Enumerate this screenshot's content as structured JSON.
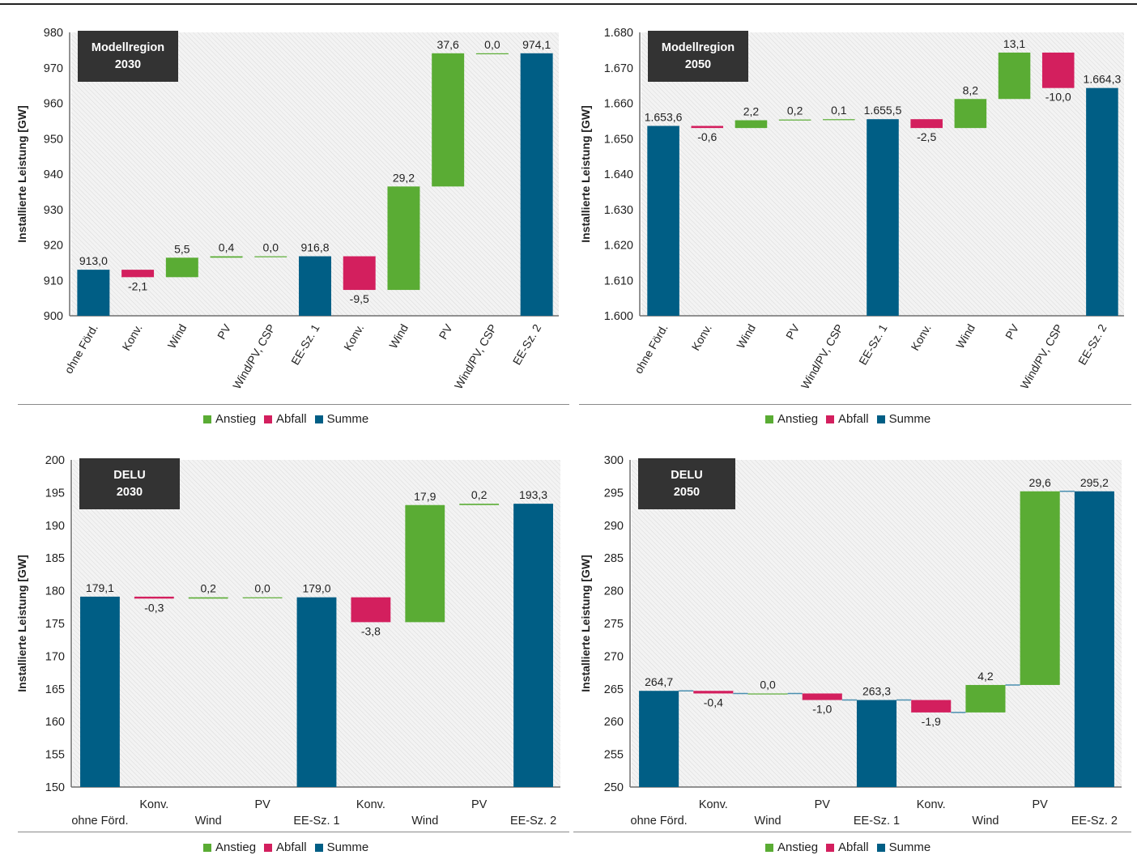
{
  "colors": {
    "increase": "#5aac34",
    "decrease": "#d31f5e",
    "total": "#005e85",
    "label_box": "#333333",
    "plot_bg": "#ececec",
    "axis": "#6f6f6f"
  },
  "legend": {
    "items": [
      {
        "key": "increase",
        "label": "Anstieg"
      },
      {
        "key": "decrease",
        "label": "Abfall"
      },
      {
        "key": "total",
        "label": "Summe"
      }
    ]
  },
  "chart_data": [
    {
      "type": "bar",
      "subtype": "waterfall",
      "title": "Modellregion 2030",
      "title_lines": [
        "Modellregion",
        "2030"
      ],
      "ylabel": "Installierte Leistung [GW]",
      "xlabel": "",
      "ylim": [
        900,
        980
      ],
      "yticks": [
        900,
        910,
        920,
        930,
        940,
        950,
        960,
        970,
        980
      ],
      "ytick_labels": [
        "900",
        "910",
        "920",
        "930",
        "940",
        "950",
        "960",
        "970",
        "980"
      ],
      "xlabel_style": "rotated",
      "grid": false,
      "legend": "bottom",
      "categories": [
        "ohne Förd.",
        "Konv.",
        "Wind",
        "PV",
        "Wind/PV, CSP",
        "EE-Sz. 1",
        "Konv.",
        "Wind",
        "PV",
        "Wind/PV, CSP",
        "EE-Sz. 2"
      ],
      "kinds": [
        "total",
        "decrease",
        "increase",
        "increase",
        "increase",
        "total",
        "decrease",
        "increase",
        "increase",
        "increase",
        "total"
      ],
      "values": [
        913.0,
        -2.1,
        5.5,
        0.4,
        0.0,
        916.8,
        -9.5,
        29.2,
        37.6,
        0.0,
        974.1
      ],
      "value_labels": [
        "913,0",
        "-2,1",
        "5,5",
        "0,4",
        "0,0",
        "916,8",
        "-9,5",
        "29,2",
        "37,6",
        "0,0",
        "974,1"
      ],
      "connectors": false
    },
    {
      "type": "bar",
      "subtype": "waterfall",
      "title": "Modellregion 2050",
      "title_lines": [
        "Modellregion",
        "2050"
      ],
      "ylabel": "Installierte Leistung [GW]",
      "xlabel": "",
      "ylim": [
        1600,
        1680
      ],
      "yticks": [
        1600,
        1610,
        1620,
        1630,
        1640,
        1650,
        1660,
        1670,
        1680
      ],
      "ytick_labels": [
        "1.600",
        "1.610",
        "1.620",
        "1.630",
        "1.640",
        "1.650",
        "1.660",
        "1.670",
        "1.680"
      ],
      "xlabel_style": "rotated",
      "grid": false,
      "legend": "bottom",
      "categories": [
        "ohne Förd.",
        "Konv.",
        "Wind",
        "PV",
        "Wind/PV, CSP",
        "EE-Sz. 1",
        "Konv.",
        "Wind",
        "PV",
        "Wind/PV, CSP",
        "EE-Sz. 2"
      ],
      "kinds": [
        "total",
        "decrease",
        "increase",
        "increase",
        "increase",
        "total",
        "decrease",
        "increase",
        "increase",
        "decrease",
        "total"
      ],
      "values": [
        1653.6,
        -0.6,
        2.2,
        0.2,
        0.1,
        1655.5,
        -2.5,
        8.2,
        13.1,
        -10.0,
        1664.3
      ],
      "value_labels": [
        "1.653,6",
        "-0,6",
        "2,2",
        "0,2",
        "0,1",
        "1.655,5",
        "-2,5",
        "8,2",
        "13,1",
        "-10,0",
        "1.664,3"
      ],
      "connectors": false
    },
    {
      "type": "bar",
      "subtype": "waterfall",
      "title": "DELU 2030",
      "title_lines": [
        "DELU",
        "2030"
      ],
      "ylabel": "Installierte Leistung [GW]",
      "xlabel": "",
      "ylim": [
        150,
        200
      ],
      "yticks": [
        150,
        155,
        160,
        165,
        170,
        175,
        180,
        185,
        190,
        195,
        200
      ],
      "ytick_labels": [
        "150",
        "155",
        "160",
        "165",
        "170",
        "175",
        "180",
        "185",
        "190",
        "195",
        "200"
      ],
      "xlabel_style": "staggered",
      "grid": false,
      "legend": "bottom",
      "categories": [
        "ohne Förd.",
        "Konv.",
        "Wind",
        "PV",
        "EE-Sz. 1",
        "Konv.",
        "Wind",
        "PV",
        "EE-Sz. 2"
      ],
      "kinds": [
        "total",
        "decrease",
        "increase",
        "increase",
        "total",
        "decrease",
        "increase",
        "increase",
        "total"
      ],
      "values": [
        179.1,
        -0.3,
        0.2,
        0.0,
        179.0,
        -3.8,
        17.9,
        0.2,
        193.3
      ],
      "value_labels": [
        "179,1",
        "-0,3",
        "0,2",
        "0,0",
        "179,0",
        "-3,8",
        "17,9",
        "0,2",
        "193,3"
      ],
      "connectors": false
    },
    {
      "type": "bar",
      "subtype": "waterfall",
      "title": "DELU 2050",
      "title_lines": [
        "DELU",
        "2050"
      ],
      "ylabel": "Installierte Leistung [GW]",
      "xlabel": "",
      "ylim": [
        250,
        300
      ],
      "yticks": [
        250,
        255,
        260,
        265,
        270,
        275,
        280,
        285,
        290,
        295,
        300
      ],
      "ytick_labels": [
        "250",
        "255",
        "260",
        "265",
        "270",
        "275",
        "280",
        "285",
        "290",
        "295",
        "300"
      ],
      "xlabel_style": "staggered",
      "grid": false,
      "legend": "bottom",
      "categories": [
        "ohne Förd.",
        "Konv.",
        "Wind",
        "PV",
        "EE-Sz. 1",
        "Konv.",
        "Wind",
        "PV",
        "EE-Sz. 2"
      ],
      "kinds": [
        "total",
        "decrease",
        "increase",
        "decrease",
        "total",
        "decrease",
        "increase",
        "increase",
        "total"
      ],
      "values": [
        264.7,
        -0.4,
        0.0,
        -1.0,
        263.3,
        -1.9,
        4.2,
        29.6,
        295.2
      ],
      "value_labels": [
        "264,7",
        "-0,4",
        "0,0",
        "-1,0",
        "263,3",
        "-1,9",
        "4,2",
        "29,6",
        "295,2"
      ],
      "connectors": true
    }
  ]
}
